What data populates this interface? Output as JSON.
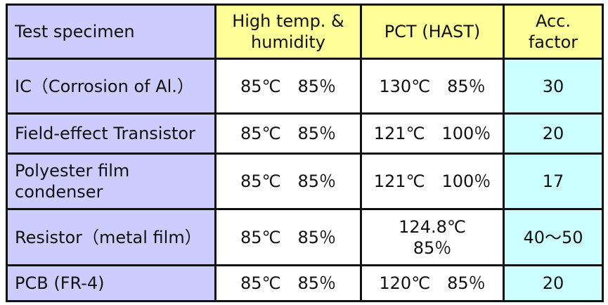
{
  "headers": [
    "Test specimen",
    "High temp. & humidity",
    "PCT (HAST)",
    "Acc. factor"
  ],
  "rows": [
    {
      "specimen": "IC（Corrosion of Al.）",
      "high_temp_humidity": "85℃　85％",
      "pct": "130℃　85％",
      "acc_factor": "30"
    },
    {
      "specimen": "Field-effect Transistor",
      "high_temp_humidity": "85℃　85％",
      "pct": "121℃　100％",
      "acc_factor": "20"
    },
    {
      "specimen": "Polyester film condenser",
      "high_temp_humidity": "85℃　85％",
      "pct": "121℃　100％",
      "acc_factor": "17"
    },
    {
      "specimen": "Resistor（metal film）",
      "high_temp_humidity": "85℃　85％",
      "pct": "124.8℃　85％",
      "acc_factor": "40～50"
    },
    {
      "specimen": "PCB (FR-4)",
      "high_temp_humidity": "85℃　85％",
      "pct": "120℃　85％",
      "acc_factor": "20"
    }
  ],
  "colors": {
    "header": "#ffff99",
    "specimen_column": "#ccccff",
    "acc_factor_column": "#ccffff"
  }
}
